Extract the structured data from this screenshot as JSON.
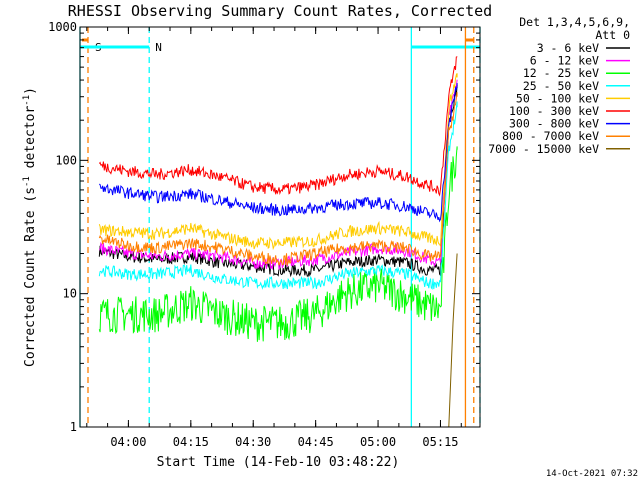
{
  "chart_data": {
    "type": "line",
    "title": "RHESSI Observing Summary Count Rates, Corrected",
    "xlabel": "Start Time (14-Feb-10 03:48:22)",
    "ylabel": "Corrected Count Rate (s⁻¹ detector⁻¹)",
    "y_scale": "log",
    "ylim": [
      1,
      1000
    ],
    "xlim": [
      "03:48:22",
      "05:24:30"
    ],
    "x_ticks": [
      "04:00",
      "04:15",
      "04:30",
      "04:45",
      "05:00",
      "05:15"
    ],
    "y_ticks": [
      "1",
      "10",
      "100",
      "1000"
    ],
    "grid": false,
    "legend_header": [
      "Det 1,3,4,5,6,9,",
      "Att 0"
    ],
    "legend_position": "right",
    "footer_timestamp": "14-Oct-2021 07:32",
    "series": [
      {
        "name": "3 - 6 keV",
        "color": "#000000",
        "x": [
          "03:53",
          "04:00",
          "04:07",
          "04:15",
          "04:22",
          "04:30",
          "04:37",
          "04:45",
          "04:52",
          "05:00",
          "05:07",
          "05:12",
          "05:15",
          "05:17",
          "05:19"
        ],
        "values": [
          21,
          19,
          18,
          19,
          17,
          16,
          15,
          15,
          17,
          18,
          17,
          15,
          15,
          200,
          350
        ]
      },
      {
        "name": "6 - 12 keV",
        "color": "#ff00ff",
        "x": [
          "03:53",
          "04:00",
          "04:07",
          "04:15",
          "04:22",
          "04:30",
          "04:37",
          "04:45",
          "04:52",
          "05:00",
          "05:07",
          "05:12",
          "05:15",
          "05:17",
          "05:19"
        ],
        "values": [
          22,
          20,
          19,
          20,
          19,
          17,
          17,
          18,
          20,
          22,
          21,
          18,
          17,
          230,
          400
        ]
      },
      {
        "name": "12 - 25 keV",
        "color": "#00ff00",
        "x": [
          "03:53",
          "04:00",
          "04:07",
          "04:15",
          "04:22",
          "04:30",
          "04:37",
          "04:45",
          "04:52",
          "05:00",
          "05:07",
          "05:12",
          "05:15",
          "05:17",
          "05:19"
        ],
        "values": [
          7,
          7,
          7,
          8.5,
          7,
          6,
          6,
          7,
          10,
          11.5,
          9.5,
          8,
          7.5,
          60,
          120
        ]
      },
      {
        "name": "25 - 50 keV",
        "color": "#00ffff",
        "x": [
          "03:53",
          "04:00",
          "04:07",
          "04:15",
          "04:22",
          "04:30",
          "04:37",
          "04:45",
          "04:52",
          "05:00",
          "05:07",
          "05:12",
          "05:15",
          "05:17",
          "05:19"
        ],
        "values": [
          15,
          14,
          14,
          15,
          13,
          12,
          12,
          12,
          14,
          15,
          14,
          12,
          12,
          120,
          250
        ]
      },
      {
        "name": "50 - 100 keV",
        "color": "#ffcc00",
        "x": [
          "03:53",
          "04:00",
          "04:07",
          "04:15",
          "04:22",
          "04:30",
          "04:37",
          "04:45",
          "04:52",
          "05:00",
          "05:07",
          "05:12",
          "05:15",
          "05:17",
          "05:19"
        ],
        "values": [
          30,
          29,
          28,
          31,
          27,
          24,
          24,
          25,
          29,
          31,
          29,
          26,
          25,
          250,
          450
        ]
      },
      {
        "name": "100 - 300 keV",
        "color": "#ff0000",
        "x": [
          "03:53",
          "04:00",
          "04:07",
          "04:15",
          "04:22",
          "04:30",
          "04:37",
          "04:45",
          "04:52",
          "05:00",
          "05:07",
          "05:12",
          "05:15",
          "05:17",
          "05:19"
        ],
        "values": [
          92,
          83,
          78,
          85,
          75,
          63,
          60,
          65,
          77,
          83,
          75,
          65,
          60,
          300,
          600
        ]
      },
      {
        "name": "300 - 800 keV",
        "color": "#0000ff",
        "x": [
          "03:53",
          "04:00",
          "04:07",
          "04:15",
          "04:22",
          "04:30",
          "04:37",
          "04:45",
          "04:52",
          "05:00",
          "05:07",
          "05:12",
          "05:15",
          "05:17",
          "05:19"
        ],
        "values": [
          63,
          57,
          53,
          56,
          50,
          44,
          42,
          44,
          47,
          48,
          45,
          40,
          38,
          180,
          380
        ]
      },
      {
        "name": "800 - 7000 keV",
        "color": "#ff8000",
        "x": [
          "03:53",
          "04:00",
          "04:07",
          "04:15",
          "04:22",
          "04:30",
          "04:37",
          "04:45",
          "04:52",
          "05:00",
          "05:07",
          "05:12",
          "05:15",
          "05:17",
          "05:19"
        ],
        "values": [
          26,
          23,
          22,
          24,
          22,
          19,
          18,
          20,
          22,
          23,
          22,
          19,
          19,
          160,
          300
        ]
      },
      {
        "name": "7000 - 15000 keV",
        "color": "#806000",
        "x": [
          "05:17",
          "05:18",
          "05:19"
        ],
        "values": [
          1,
          6,
          20
        ]
      }
    ],
    "markers": [
      {
        "label": "S",
        "color": "#ff8000",
        "x_start": "03:48:22",
        "x_end": "03:50:00"
      },
      {
        "label": "N",
        "color": "#00ffff",
        "x_start": "03:48:22",
        "x_end": "04:05:00"
      },
      {
        "label": "",
        "color": "#00ffff",
        "x_start": "05:08:00",
        "x_end": "05:24:30"
      },
      {
        "label": "",
        "color": "#ff8000",
        "x_start": "05:21:00",
        "x_end": "05:23:00"
      }
    ]
  }
}
